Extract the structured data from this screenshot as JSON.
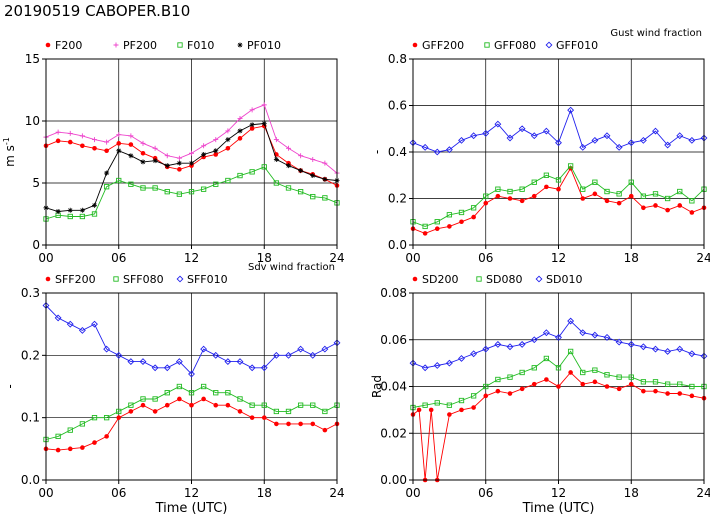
{
  "figure_title": "20190519 CABOPER.B10",
  "chart_data": [
    {
      "type": "line",
      "title": "",
      "ylabel": "m s",
      "ylabel_sup": "-1",
      "xlabel": "",
      "xlim": [
        0,
        24
      ],
      "ylim": [
        0,
        15
      ],
      "yticks": [
        0,
        5,
        10,
        15
      ],
      "ytick_labels": [
        "0",
        "5",
        "10",
        "15"
      ],
      "xticks": [
        0,
        6,
        12,
        18,
        24
      ],
      "xtick_labels": [
        "00",
        "06",
        "12",
        "18",
        "24"
      ],
      "grid": true,
      "legend_position": "top-left",
      "series": [
        {
          "name": "F200",
          "color": "#ff0000",
          "marker": "dot",
          "x": [
            0,
            1,
            2,
            3,
            4,
            5,
            6,
            7,
            8,
            9,
            10,
            11,
            12,
            13,
            14,
            15,
            16,
            17,
            18,
            19,
            20,
            21,
            22,
            23,
            24
          ],
          "values": [
            8.0,
            8.4,
            8.3,
            8.0,
            7.8,
            7.6,
            8.2,
            8.1,
            7.4,
            7.0,
            6.3,
            6.1,
            6.4,
            7.1,
            7.3,
            7.8,
            8.6,
            9.4,
            9.6,
            7.3,
            6.6,
            6.0,
            5.7,
            5.3,
            4.8
          ]
        },
        {
          "name": "PF200",
          "color": "#ee44cc",
          "marker": "plus",
          "x": [
            0,
            1,
            2,
            3,
            4,
            5,
            6,
            7,
            8,
            9,
            10,
            11,
            12,
            13,
            14,
            15,
            16,
            17,
            18,
            19,
            20,
            21,
            22,
            23,
            24
          ],
          "values": [
            8.7,
            9.1,
            9.0,
            8.8,
            8.5,
            8.3,
            8.9,
            8.8,
            8.2,
            7.8,
            7.2,
            7.0,
            7.4,
            8.0,
            8.5,
            9.2,
            10.2,
            10.9,
            11.3,
            8.5,
            7.8,
            7.2,
            6.9,
            6.6,
            5.8
          ]
        },
        {
          "name": "F010",
          "color": "#22bb22",
          "marker": "square",
          "x": [
            0,
            1,
            2,
            3,
            4,
            5,
            6,
            7,
            8,
            9,
            10,
            11,
            12,
            13,
            14,
            15,
            16,
            17,
            18,
            19,
            20,
            21,
            22,
            23,
            24
          ],
          "values": [
            2.1,
            2.4,
            2.3,
            2.3,
            2.5,
            4.7,
            5.2,
            4.9,
            4.6,
            4.6,
            4.3,
            4.1,
            4.3,
            4.5,
            4.9,
            5.2,
            5.6,
            5.9,
            6.3,
            5.0,
            4.6,
            4.3,
            3.9,
            3.8,
            3.4
          ]
        },
        {
          "name": "PF010",
          "color": "#000000",
          "marker": "star",
          "x": [
            0,
            1,
            2,
            3,
            4,
            5,
            6,
            7,
            8,
            9,
            10,
            11,
            12,
            13,
            14,
            15,
            16,
            17,
            18,
            19,
            20,
            21,
            22,
            23,
            24
          ],
          "values": [
            3.0,
            2.7,
            2.8,
            2.8,
            3.2,
            5.8,
            7.6,
            7.2,
            6.7,
            6.8,
            6.4,
            6.6,
            6.6,
            7.3,
            7.6,
            8.5,
            9.2,
            9.7,
            9.8,
            6.9,
            6.4,
            6.0,
            5.6,
            5.3,
            5.2
          ]
        }
      ]
    },
    {
      "type": "line",
      "title": "Gust wind fraction",
      "ylabel": "-",
      "xlabel": "",
      "xlim": [
        0,
        24
      ],
      "ylim": [
        0,
        0.8
      ],
      "yticks": [
        0,
        0.2,
        0.4,
        0.6,
        0.8
      ],
      "ytick_labels": [
        "0.0",
        "0.2",
        "0.4",
        "0.6",
        "0.8"
      ],
      "xticks": [
        0,
        6,
        12,
        18,
        24
      ],
      "xtick_labels": [
        "00",
        "06",
        "12",
        "18",
        "24"
      ],
      "grid": true,
      "legend_position": "top-left",
      "series": [
        {
          "name": "GFF200",
          "color": "#ff0000",
          "marker": "dot",
          "x": [
            0,
            1,
            2,
            3,
            4,
            5,
            6,
            7,
            8,
            9,
            10,
            11,
            12,
            13,
            14,
            15,
            16,
            17,
            18,
            19,
            20,
            21,
            22,
            23,
            24
          ],
          "values": [
            0.07,
            0.05,
            0.07,
            0.08,
            0.1,
            0.12,
            0.18,
            0.21,
            0.2,
            0.19,
            0.21,
            0.25,
            0.24,
            0.33,
            0.2,
            0.22,
            0.19,
            0.18,
            0.21,
            0.16,
            0.17,
            0.15,
            0.17,
            0.14,
            0.16
          ]
        },
        {
          "name": "GFF080",
          "color": "#22bb22",
          "marker": "square",
          "x": [
            0,
            1,
            2,
            3,
            4,
            5,
            6,
            7,
            8,
            9,
            10,
            11,
            12,
            13,
            14,
            15,
            16,
            17,
            18,
            19,
            20,
            21,
            22,
            23,
            24
          ],
          "values": [
            0.1,
            0.08,
            0.1,
            0.13,
            0.14,
            0.16,
            0.21,
            0.24,
            0.23,
            0.24,
            0.27,
            0.3,
            0.28,
            0.34,
            0.24,
            0.27,
            0.23,
            0.22,
            0.27,
            0.21,
            0.22,
            0.2,
            0.23,
            0.19,
            0.24
          ]
        },
        {
          "name": "GFF010",
          "color": "#2222ee",
          "marker": "diamond",
          "x": [
            0,
            1,
            2,
            3,
            4,
            5,
            6,
            7,
            8,
            9,
            10,
            11,
            12,
            13,
            14,
            15,
            16,
            17,
            18,
            19,
            20,
            21,
            22,
            23,
            24
          ],
          "values": [
            0.44,
            0.42,
            0.4,
            0.41,
            0.45,
            0.47,
            0.48,
            0.52,
            0.46,
            0.5,
            0.47,
            0.49,
            0.44,
            0.58,
            0.42,
            0.45,
            0.47,
            0.42,
            0.44,
            0.45,
            0.49,
            0.43,
            0.47,
            0.45,
            0.46
          ]
        }
      ]
    },
    {
      "type": "line",
      "title": "Sdv wind fraction",
      "ylabel": "-",
      "xlabel": "Time (UTC)",
      "xlim": [
        0,
        24
      ],
      "ylim": [
        0,
        0.3
      ],
      "yticks": [
        0,
        0.1,
        0.2,
        0.3
      ],
      "ytick_labels": [
        "0.0",
        "0.1",
        "0.2",
        "0.3"
      ],
      "xticks": [
        0,
        6,
        12,
        18,
        24
      ],
      "xtick_labels": [
        "00",
        "06",
        "12",
        "18",
        "24"
      ],
      "grid": true,
      "legend_position": "top-left",
      "series": [
        {
          "name": "SFF200",
          "color": "#ff0000",
          "marker": "dot",
          "x": [
            0,
            1,
            2,
            3,
            4,
            5,
            6,
            7,
            8,
            9,
            10,
            11,
            12,
            13,
            14,
            15,
            16,
            17,
            18,
            19,
            20,
            21,
            22,
            23,
            24
          ],
          "values": [
            0.05,
            0.048,
            0.05,
            0.052,
            0.06,
            0.07,
            0.1,
            0.11,
            0.12,
            0.11,
            0.12,
            0.13,
            0.12,
            0.13,
            0.12,
            0.12,
            0.11,
            0.1,
            0.1,
            0.09,
            0.09,
            0.09,
            0.09,
            0.08,
            0.09
          ]
        },
        {
          "name": "SFF080",
          "color": "#22bb22",
          "marker": "square",
          "x": [
            0,
            1,
            2,
            3,
            4,
            5,
            6,
            7,
            8,
            9,
            10,
            11,
            12,
            13,
            14,
            15,
            16,
            17,
            18,
            19,
            20,
            21,
            22,
            23,
            24
          ],
          "values": [
            0.065,
            0.07,
            0.08,
            0.09,
            0.1,
            0.1,
            0.11,
            0.12,
            0.13,
            0.13,
            0.14,
            0.15,
            0.14,
            0.15,
            0.14,
            0.14,
            0.13,
            0.12,
            0.12,
            0.11,
            0.11,
            0.12,
            0.12,
            0.11,
            0.12
          ]
        },
        {
          "name": "SFF010",
          "color": "#2222ee",
          "marker": "diamond",
          "x": [
            0,
            1,
            2,
            3,
            4,
            5,
            6,
            7,
            8,
            9,
            10,
            11,
            12,
            13,
            14,
            15,
            16,
            17,
            18,
            19,
            20,
            21,
            22,
            23,
            24
          ],
          "values": [
            0.28,
            0.26,
            0.25,
            0.24,
            0.25,
            0.21,
            0.2,
            0.19,
            0.19,
            0.18,
            0.18,
            0.19,
            0.17,
            0.21,
            0.2,
            0.19,
            0.19,
            0.18,
            0.18,
            0.2,
            0.2,
            0.21,
            0.2,
            0.21,
            0.22
          ]
        }
      ]
    },
    {
      "type": "line",
      "title": "",
      "ylabel": "Rad",
      "xlabel": "Time (UTC)",
      "xlim": [
        0,
        24
      ],
      "ylim": [
        0,
        0.08
      ],
      "yticks": [
        0,
        0.02,
        0.04,
        0.06,
        0.08
      ],
      "ytick_labels": [
        "0.00",
        "0.02",
        "0.04",
        "0.06",
        "0.08"
      ],
      "xticks": [
        0,
        6,
        12,
        18,
        24
      ],
      "xtick_labels": [
        "00",
        "06",
        "12",
        "18",
        "24"
      ],
      "grid": true,
      "legend_position": "top-left",
      "series": [
        {
          "name": "SD200",
          "color": "#ff0000",
          "marker": "dot",
          "x": [
            0,
            0.5,
            1,
            1.5,
            2,
            3,
            4,
            5,
            6,
            7,
            8,
            9,
            10,
            11,
            12,
            13,
            14,
            15,
            16,
            17,
            18,
            19,
            20,
            21,
            22,
            23,
            24
          ],
          "values": [
            0.028,
            0.03,
            0.0,
            0.03,
            0.0,
            0.028,
            0.03,
            0.031,
            0.036,
            0.038,
            0.037,
            0.039,
            0.041,
            0.043,
            0.04,
            0.046,
            0.041,
            0.042,
            0.04,
            0.039,
            0.041,
            0.038,
            0.038,
            0.037,
            0.037,
            0.036,
            0.035
          ]
        },
        {
          "name": "SD080",
          "color": "#22bb22",
          "marker": "square",
          "x": [
            0,
            1,
            2,
            3,
            4,
            5,
            6,
            7,
            8,
            9,
            10,
            11,
            12,
            13,
            14,
            15,
            16,
            17,
            18,
            19,
            20,
            21,
            22,
            23,
            24
          ],
          "values": [
            0.031,
            0.032,
            0.033,
            0.032,
            0.034,
            0.036,
            0.04,
            0.043,
            0.044,
            0.046,
            0.048,
            0.052,
            0.048,
            0.055,
            0.046,
            0.047,
            0.045,
            0.044,
            0.044,
            0.042,
            0.042,
            0.041,
            0.041,
            0.04,
            0.04
          ]
        },
        {
          "name": "SD010",
          "color": "#2222ee",
          "marker": "diamond",
          "x": [
            0,
            1,
            2,
            3,
            4,
            5,
            6,
            7,
            8,
            9,
            10,
            11,
            12,
            13,
            14,
            15,
            16,
            17,
            18,
            19,
            20,
            21,
            22,
            23,
            24
          ],
          "values": [
            0.05,
            0.048,
            0.049,
            0.05,
            0.052,
            0.054,
            0.056,
            0.058,
            0.057,
            0.058,
            0.06,
            0.063,
            0.061,
            0.068,
            0.063,
            0.062,
            0.061,
            0.059,
            0.058,
            0.057,
            0.056,
            0.055,
            0.056,
            0.054,
            0.053
          ]
        }
      ]
    }
  ]
}
